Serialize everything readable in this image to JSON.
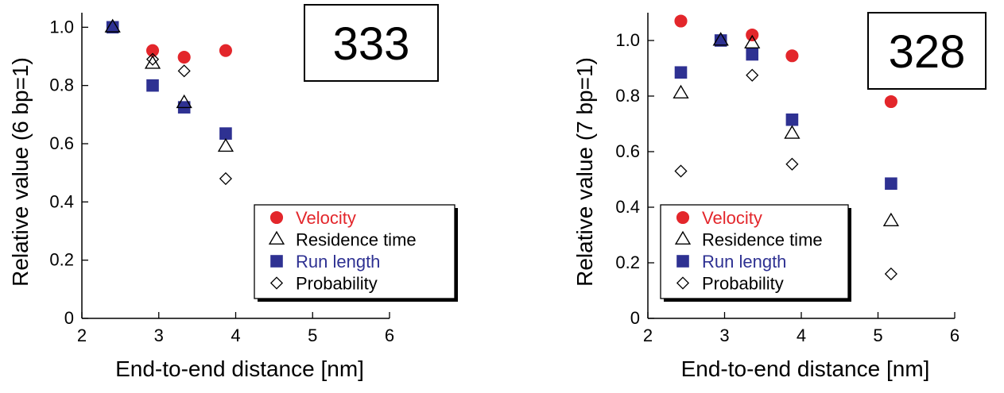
{
  "chart_data": [
    {
      "type": "scatter",
      "tag": "333",
      "xlabel": "End-to-end distance [nm]",
      "ylabel": "Relative value (6 bp=1)",
      "xlim": [
        2,
        6
      ],
      "ylim": [
        0,
        1.05
      ],
      "xticks": [
        2,
        3,
        4,
        5,
        6
      ],
      "yticks": [
        0,
        0.2,
        0.4,
        0.6,
        0.8,
        1.0
      ],
      "ytick_labels": [
        "0",
        "0.2",
        "0.4",
        "0.6",
        "0.8",
        "1.0"
      ],
      "grid": false,
      "legend_position": "bottom-right",
      "series": [
        {
          "name": "Velocity",
          "marker": "circle",
          "color": "#e3262b",
          "points": [
            [
              2.92,
              0.92
            ],
            [
              3.33,
              0.897
            ],
            [
              3.87,
              0.92
            ]
          ]
        },
        {
          "name": "Residence time",
          "marker": "triangle",
          "color": "#000000",
          "points": [
            [
              2.4,
              1.0
            ],
            [
              2.92,
              0.875
            ],
            [
              3.33,
              0.74
            ],
            [
              3.87,
              0.59
            ]
          ]
        },
        {
          "name": "Run length",
          "marker": "square",
          "color": "#2e3192",
          "points": [
            [
              2.4,
              1.0
            ],
            [
              2.92,
              0.8
            ],
            [
              3.33,
              0.725
            ],
            [
              3.87,
              0.635
            ]
          ]
        },
        {
          "name": "Probability",
          "marker": "diamond",
          "color": "#000000",
          "points": [
            [
              2.92,
              0.89
            ],
            [
              3.33,
              0.85
            ],
            [
              3.87,
              0.48
            ]
          ]
        }
      ]
    },
    {
      "type": "scatter",
      "tag": "328",
      "xlabel": "End-to-end distance [nm]",
      "ylabel": "Relative value (7 bp=1)",
      "xlim": [
        2,
        6
      ],
      "ylim": [
        0,
        1.1
      ],
      "xticks": [
        2,
        3,
        4,
        5,
        6
      ],
      "yticks": [
        0,
        0.2,
        0.4,
        0.6,
        0.8,
        1.0
      ],
      "ytick_labels": [
        "0",
        "0.2",
        "0.4",
        "0.6",
        "0.8",
        "1.0"
      ],
      "grid": false,
      "legend_position": "bottom-right",
      "series": [
        {
          "name": "Velocity",
          "marker": "circle",
          "color": "#e3262b",
          "points": [
            [
              2.43,
              1.07
            ],
            [
              3.36,
              1.02
            ],
            [
              3.88,
              0.945
            ],
            [
              5.17,
              0.78
            ]
          ]
        },
        {
          "name": "Residence time",
          "marker": "triangle",
          "color": "#000000",
          "points": [
            [
              2.43,
              0.81
            ],
            [
              2.95,
              1.0
            ],
            [
              3.36,
              0.99
            ],
            [
              3.88,
              0.665
            ],
            [
              5.17,
              0.35
            ]
          ]
        },
        {
          "name": "Run length",
          "marker": "square",
          "color": "#2e3192",
          "points": [
            [
              2.43,
              0.885
            ],
            [
              2.95,
              1.0
            ],
            [
              3.36,
              0.95
            ],
            [
              3.88,
              0.715
            ],
            [
              5.17,
              0.485
            ]
          ]
        },
        {
          "name": "Probability",
          "marker": "diamond",
          "color": "#000000",
          "points": [
            [
              2.43,
              0.53
            ],
            [
              3.36,
              0.875
            ],
            [
              3.88,
              0.555
            ],
            [
              5.17,
              0.16
            ]
          ]
        }
      ]
    }
  ]
}
